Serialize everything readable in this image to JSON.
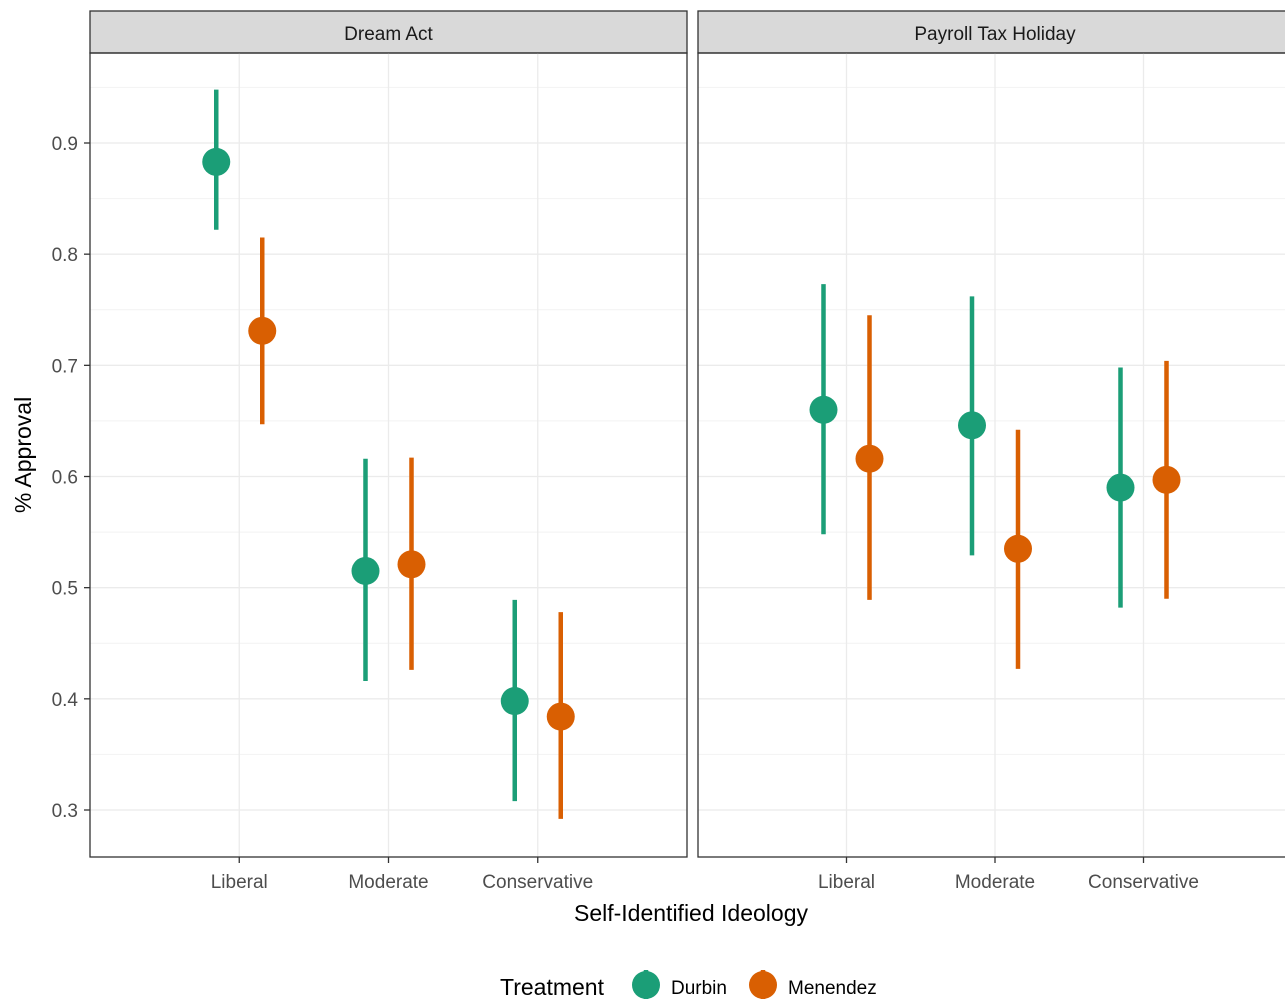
{
  "chart_data": {
    "type": "scatter",
    "subtype": "point-range (point estimate with vertical interval), faceted",
    "panels": [
      {
        "title": "Dream Act",
        "categories": [
          "Liberal",
          "Moderate",
          "Conservative"
        ],
        "series": [
          {
            "name": "Durbin",
            "color": "#1b9e77",
            "points": [
              {
                "category": "Liberal",
                "y": 0.883,
                "ymin": 0.822,
                "ymax": 0.948
              },
              {
                "category": "Moderate",
                "y": 0.515,
                "ymin": 0.416,
                "ymax": 0.616
              },
              {
                "category": "Conservative",
                "y": 0.398,
                "ymin": 0.308,
                "ymax": 0.489
              }
            ]
          },
          {
            "name": "Menendez",
            "color": "#d95f02",
            "points": [
              {
                "category": "Liberal",
                "y": 0.731,
                "ymin": 0.647,
                "ymax": 0.815
              },
              {
                "category": "Moderate",
                "y": 0.521,
                "ymin": 0.426,
                "ymax": 0.617
              },
              {
                "category": "Conservative",
                "y": 0.384,
                "ymin": 0.292,
                "ymax": 0.478
              }
            ]
          }
        ]
      },
      {
        "title": "Payroll Tax Holiday",
        "categories": [
          "Liberal",
          "Moderate",
          "Conservative"
        ],
        "series": [
          {
            "name": "Durbin",
            "color": "#1b9e77",
            "points": [
              {
                "category": "Liberal",
                "y": 0.66,
                "ymin": 0.548,
                "ymax": 0.773
              },
              {
                "category": "Moderate",
                "y": 0.646,
                "ymin": 0.529,
                "ymax": 0.762
              },
              {
                "category": "Conservative",
                "y": 0.59,
                "ymin": 0.482,
                "ymax": 0.698
              }
            ]
          },
          {
            "name": "Menendez",
            "color": "#d95f02",
            "points": [
              {
                "category": "Liberal",
                "y": 0.616,
                "ymin": 0.489,
                "ymax": 0.745
              },
              {
                "category": "Moderate",
                "y": 0.535,
                "ymin": 0.427,
                "ymax": 0.642
              },
              {
                "category": "Conservative",
                "y": 0.597,
                "ymin": 0.49,
                "ymax": 0.704
              }
            ]
          }
        ]
      }
    ],
    "xlabel": "Self-Identified Ideology",
    "ylabel": "% Approval",
    "ylim": [
      0.26,
      0.985
    ],
    "yticks": [
      0.3,
      0.4,
      0.5,
      0.6,
      0.7,
      0.8,
      0.9
    ],
    "yticks_text": [
      "0.3",
      "0.4",
      "0.5",
      "0.6",
      "0.7",
      "0.8",
      "0.9"
    ],
    "legend": {
      "title": "Treatment",
      "position": "bottom",
      "entries": [
        {
          "label": "Durbin",
          "color": "#1b9e77"
        },
        {
          "label": "Menendez",
          "color": "#d95f02"
        }
      ]
    },
    "grid": true,
    "theme": "bw"
  }
}
